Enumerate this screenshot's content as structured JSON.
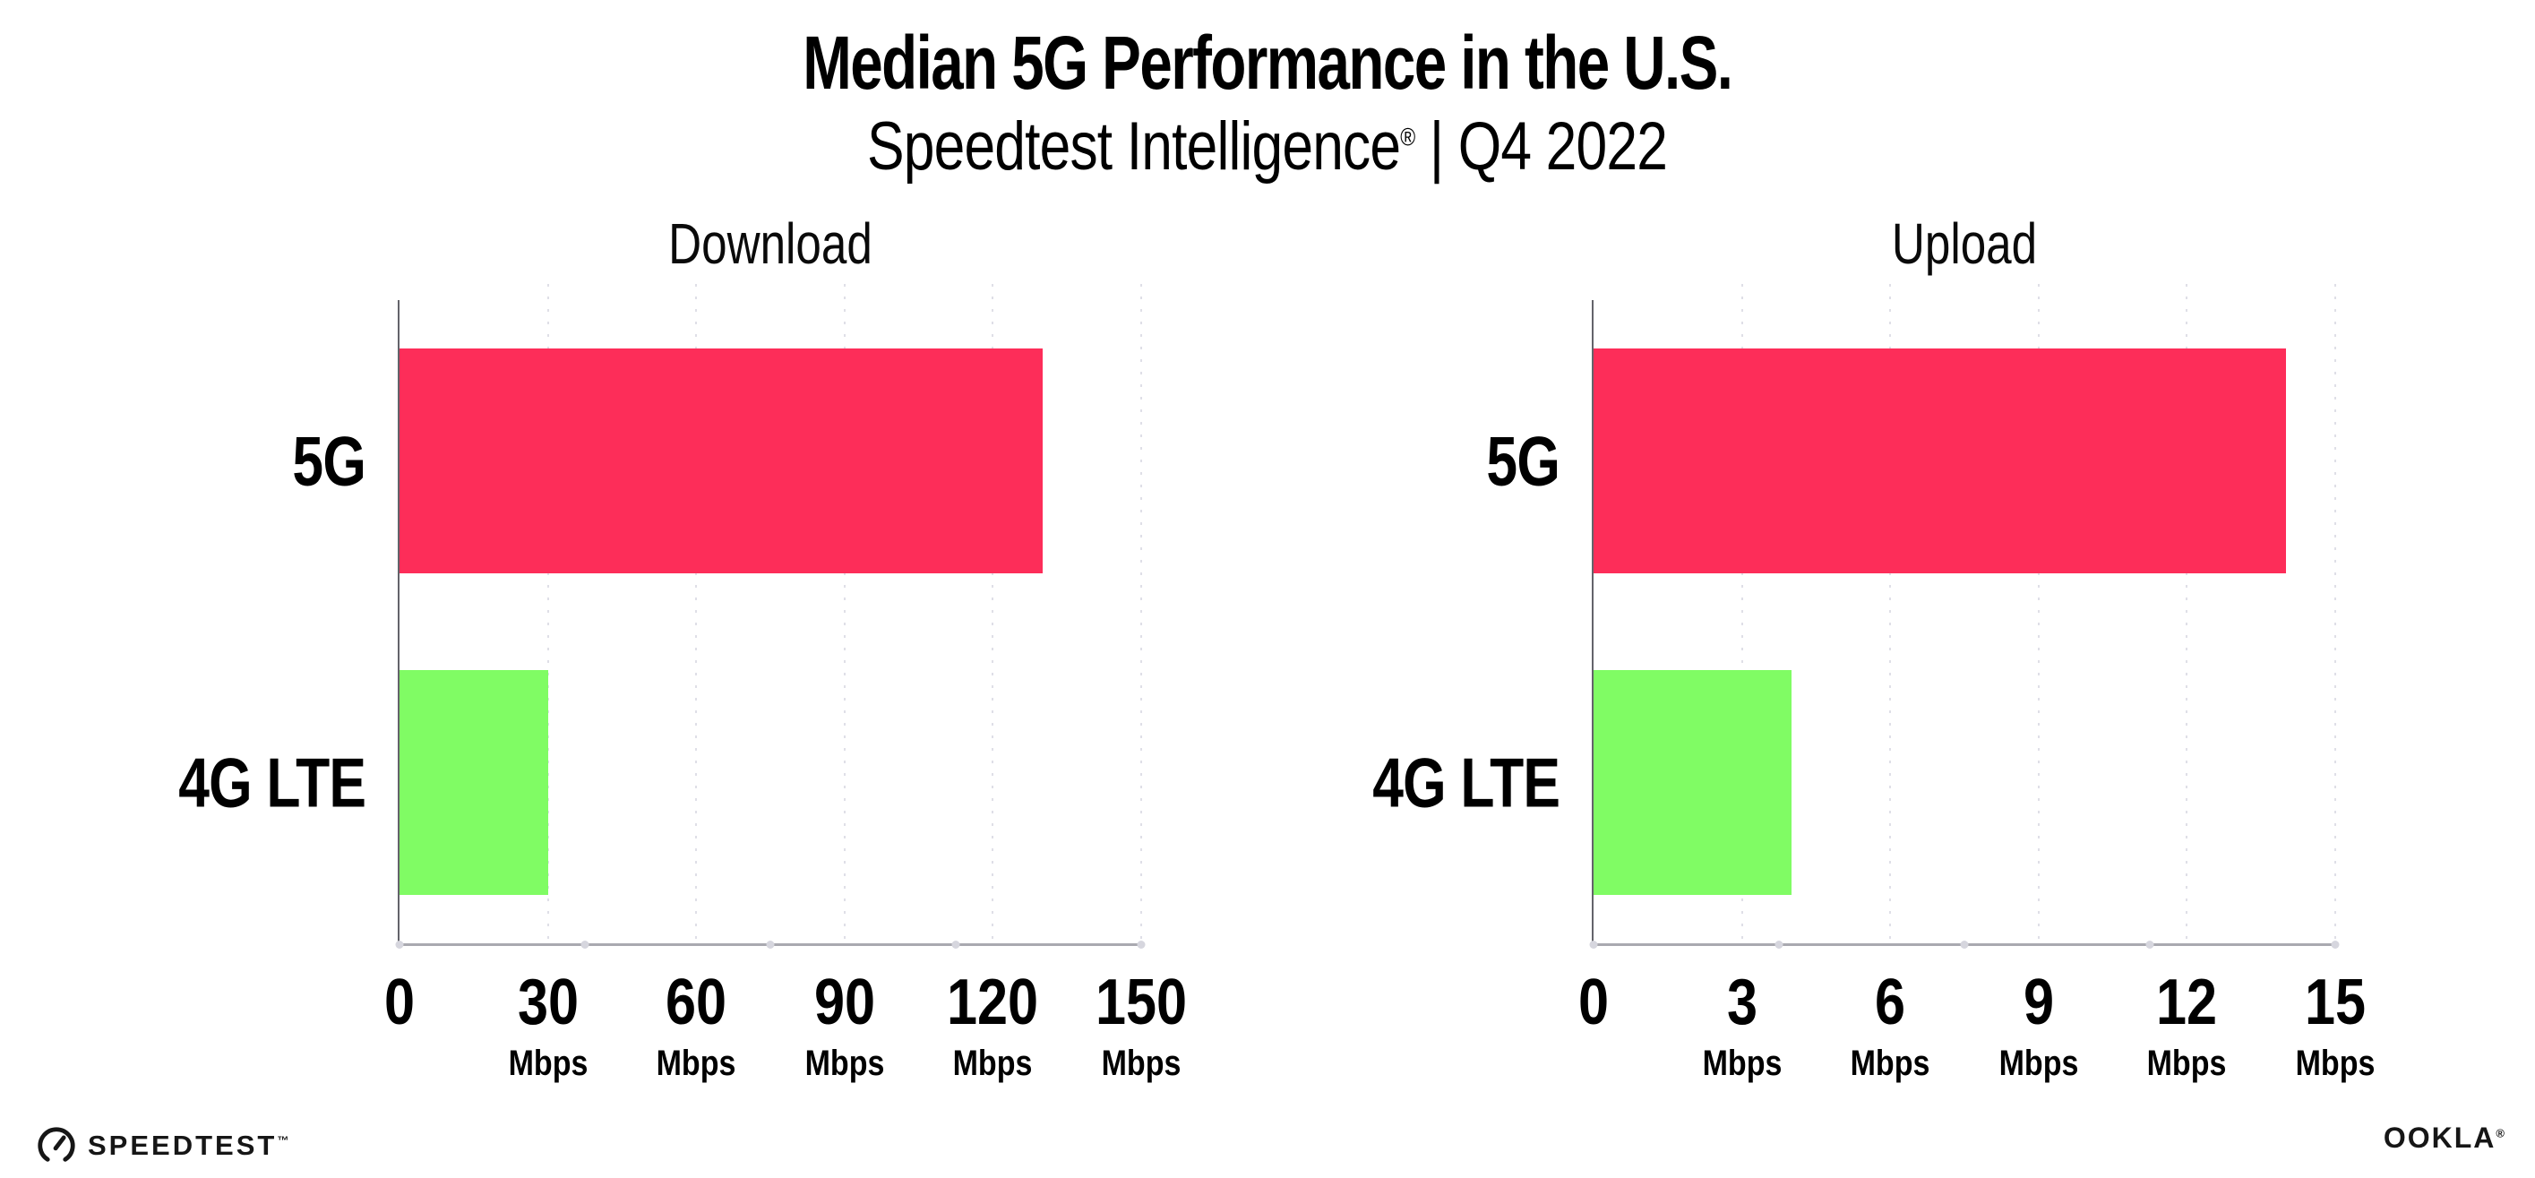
{
  "header": {
    "title": "Median 5G Performance in the U.S.",
    "subtitle_brand": "Speedtest Intelligence",
    "subtitle_mark": "®",
    "subtitle_rest": " | Q4 2022"
  },
  "chart_data": [
    {
      "type": "bar",
      "orientation": "horizontal",
      "title": "Download",
      "categories": [
        "5G",
        "4G LTE"
      ],
      "values": [
        130,
        30
      ],
      "unit": "Mbps",
      "xlim": [
        0,
        150
      ],
      "xticks": [
        0,
        30,
        60,
        90,
        120,
        150
      ],
      "colors": [
        "#FD2D59",
        "#80FC64"
      ],
      "grid": "dotted-vertical",
      "legend": "none"
    },
    {
      "type": "bar",
      "orientation": "horizontal",
      "title": "Upload",
      "categories": [
        "5G",
        "4G LTE"
      ],
      "values": [
        14,
        4
      ],
      "unit": "Mbps",
      "xlim": [
        0,
        15
      ],
      "xticks": [
        0,
        3,
        6,
        9,
        12,
        15
      ],
      "colors": [
        "#FD2D59",
        "#80FC64"
      ],
      "grid": "dotted-vertical",
      "legend": "none"
    }
  ],
  "footer": {
    "speedtest": "SPEEDTEST",
    "speedtest_mark": "™",
    "ookla": "OOKLA",
    "ookla_mark": "®"
  },
  "colors": {
    "bar_5g": "#FD2D59",
    "bar_4g_lte": "#80FC64",
    "axis_baseline": "#a9a9b0",
    "axis_spine": "#63636a",
    "gridline": "#dfdfe7",
    "text": "#000000"
  }
}
